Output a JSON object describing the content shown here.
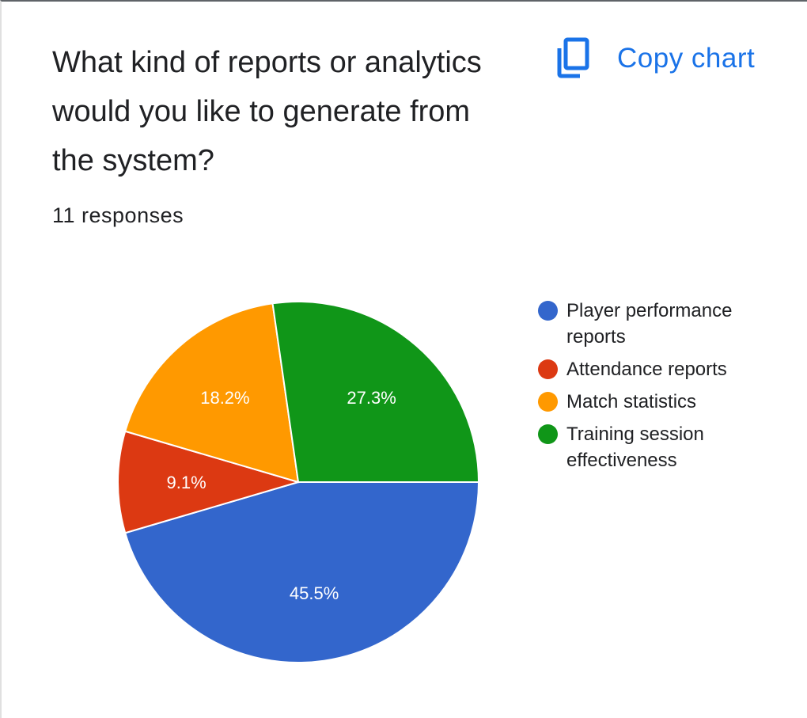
{
  "question": {
    "title": "What kind of reports or analytics would you like to generate from the system?",
    "responses": "11 responses"
  },
  "actions": {
    "copy_chart_label": "Copy chart",
    "copy_icon": "copy-icon"
  },
  "colors": {
    "accent": "#1a73e8",
    "blue": "#3366cc",
    "red": "#dc3912",
    "orange": "#ff9900",
    "green": "#109618"
  },
  "chart_data": {
    "type": "pie",
    "title": "",
    "slices": [
      {
        "label": "Player performance reports",
        "value": 45.5,
        "display": "45.5%",
        "color": "#3366cc"
      },
      {
        "label": "Attendance reports",
        "value": 9.1,
        "display": "9.1%",
        "color": "#dc3912"
      },
      {
        "label": "Match statistics",
        "value": 18.2,
        "display": "18.2%",
        "color": "#ff9900"
      },
      {
        "label": "Training session effectiveness",
        "value": 27.3,
        "display": "27.3%",
        "color": "#109618"
      }
    ],
    "legend_position": "right"
  }
}
